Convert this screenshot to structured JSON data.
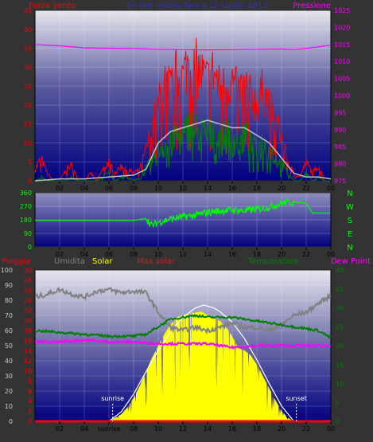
{
  "chart_data": [
    {
      "id": "wind",
      "type": "line",
      "title": "24 Ore meteo fino a 12 Luglio 2013",
      "left_label": "Forza vento",
      "right_label": "Pressione",
      "ylim": [
        0,
        45
      ],
      "y_ticks": [
        0,
        5,
        10,
        15,
        20,
        25,
        30,
        35,
        40,
        45
      ],
      "y2lim": [
        975,
        1025
      ],
      "y2_ticks": [
        975,
        980,
        985,
        990,
        995,
        1000,
        1005,
        1010,
        1015,
        1020,
        1025
      ],
      "x_ticks": [
        "02",
        "04",
        "06",
        "08",
        "10",
        "12",
        "14",
        "16",
        "18",
        "20",
        "22",
        "00"
      ],
      "x_range_hours": [
        0,
        24
      ],
      "colors": {
        "gust": "#ff0000",
        "speed": "#008000",
        "average": "#c0c0c0",
        "pressure": "#ff00ff"
      },
      "gust": {
        "hours": [
          0.0,
          0.5,
          1.0,
          1.5,
          2.0,
          2.5,
          3.0,
          3.5,
          4.0,
          4.5,
          5.0,
          5.5,
          6.0,
          6.5,
          7.0,
          7.5,
          8.0,
          8.5,
          9.0,
          9.5,
          10.0,
          10.5,
          11.0,
          11.5,
          12.0,
          12.5,
          13.0,
          13.5,
          14.0,
          14.5,
          15.0,
          15.5,
          16.0,
          16.5,
          17.0,
          17.5,
          18.0,
          18.5,
          19.0,
          19.5,
          20.0,
          20.5,
          21.0,
          21.5,
          22.0,
          22.5,
          23.0,
          23.5,
          24.0
        ],
        "values": [
          3,
          6,
          2,
          0,
          0,
          3,
          4,
          0,
          0,
          2,
          0,
          3,
          5,
          2,
          4,
          3,
          2,
          3,
          8,
          14,
          20,
          26,
          24,
          28,
          27,
          32,
          30,
          28,
          26,
          29,
          24,
          25,
          26,
          23,
          25,
          22,
          20,
          24,
          20,
          16,
          12,
          5,
          2,
          1,
          5,
          2,
          4,
          0,
          0
        ]
      },
      "speed": {
        "hours": [
          0.0,
          0.5,
          1.0,
          1.5,
          2.0,
          2.5,
          3.0,
          3.5,
          4.0,
          4.5,
          5.0,
          5.5,
          6.0,
          6.5,
          7.0,
          7.5,
          8.0,
          8.5,
          9.0,
          9.5,
          10.0,
          10.5,
          11.0,
          11.5,
          12.0,
          12.5,
          13.0,
          13.5,
          14.0,
          14.5,
          15.0,
          15.5,
          16.0,
          16.5,
          17.0,
          17.5,
          18.0,
          18.5,
          19.0,
          19.5,
          20.0,
          20.5,
          21.0,
          21.5,
          22.0,
          22.5,
          23.0,
          23.5,
          24.0
        ],
        "values": [
          0,
          1,
          0,
          0,
          0,
          0,
          1,
          0,
          0,
          0,
          0,
          1,
          2,
          0,
          1,
          1,
          0,
          1,
          3,
          5,
          8,
          10,
          9,
          12,
          11,
          14,
          13,
          12,
          12,
          13,
          10,
          12,
          11,
          10,
          12,
          9,
          8,
          10,
          8,
          6,
          4,
          2,
          0,
          0,
          2,
          0,
          1,
          0,
          0
        ]
      },
      "average": {
        "hours": [
          0,
          2,
          4,
          6,
          8,
          9,
          10,
          11,
          12,
          13,
          14,
          15,
          16,
          17,
          18,
          19,
          20,
          21,
          22,
          23,
          24
        ],
        "values": [
          0,
          0.5,
          0.5,
          1,
          1.5,
          3,
          10,
          13,
          14,
          15,
          16,
          15,
          14,
          14,
          12,
          10,
          6,
          2,
          1,
          1,
          0.5
        ]
      },
      "pressure": {
        "hours": [
          0,
          2,
          4,
          6,
          8,
          10,
          12,
          14,
          16,
          18,
          20,
          21,
          22,
          24
        ],
        "values": [
          1015.0,
          1014.6,
          1014.0,
          1013.9,
          1013.8,
          1013.6,
          1013.5,
          1013.4,
          1013.5,
          1013.6,
          1013.7,
          1013.5,
          1013.8,
          1014.8
        ]
      }
    },
    {
      "id": "direction",
      "type": "line",
      "ylim": [
        0,
        360
      ],
      "y_ticks": [
        0,
        90,
        180,
        270,
        360
      ],
      "x_ticks": [
        "02",
        "04",
        "06",
        "08",
        "10",
        "12",
        "14",
        "16",
        "18",
        "20",
        "22",
        "00"
      ],
      "x_range_hours": [
        0,
        24
      ],
      "compass_labels": [
        "N",
        "W",
        "S",
        "E",
        "N"
      ],
      "color": "#00ff00",
      "hours": [
        0,
        8,
        9,
        9.5,
        10,
        11,
        12,
        13,
        14,
        15,
        16,
        17,
        18,
        19,
        20,
        21,
        22,
        22.5,
        24
      ],
      "values": [
        175,
        175,
        190,
        140,
        165,
        185,
        200,
        210,
        230,
        240,
        245,
        240,
        250,
        265,
        290,
        300,
        290,
        225,
        225
      ]
    },
    {
      "id": "solar",
      "type": "area",
      "left_labels": [
        "Pioggia",
        "Umidita",
        "Solar",
        "Max solar"
      ],
      "right_labels": [
        "Temperatura",
        "Dew Point"
      ],
      "humidity_axis": {
        "ylim": [
          0,
          100
        ],
        "ticks": [
          0,
          10,
          20,
          30,
          40,
          50,
          60,
          70,
          80,
          90,
          100
        ]
      },
      "rain_axis": {
        "ylim": [
          0,
          30
        ],
        "ticks": [
          0,
          2,
          4,
          6,
          8,
          10,
          12,
          14,
          16,
          18,
          20,
          22,
          24,
          26,
          28,
          30
        ]
      },
      "temp_axis": {
        "ylim": [
          0,
          40
        ],
        "ticks": [
          0,
          5,
          10,
          15,
          20,
          25,
          30,
          35,
          40
        ]
      },
      "x_ticks": [
        "02",
        "04",
        "sunrise",
        "08",
        "10",
        "12",
        "14",
        "16",
        "18",
        "20",
        "22",
        "00"
      ],
      "x_range_hours": [
        0,
        24
      ],
      "annotations": [
        "sunrise",
        "sunset"
      ],
      "sunrise_hour": 6.3,
      "sunset_hour": 21.2,
      "solar_max_value": 1000,
      "colors": {
        "rain": "#ff0000",
        "humidity": "#808080",
        "solar": "#ffff00",
        "max_solar": "#ffffff",
        "temperature": "#008000",
        "dew_point": "#ff00ff"
      },
      "humidity": {
        "hours": [
          0,
          1,
          2,
          3,
          4,
          5,
          6,
          7,
          8,
          9,
          10,
          11,
          12,
          13,
          14,
          15,
          16,
          17,
          18,
          19,
          20,
          21,
          22,
          23,
          24
        ],
        "values": [
          82,
          84,
          87,
          84,
          82,
          86,
          87,
          85,
          86,
          85,
          72,
          62,
          60,
          62,
          60,
          62,
          65,
          62,
          62,
          60,
          64,
          70,
          72,
          78,
          83
        ]
      },
      "temperature": {
        "hours": [
          0,
          2,
          4,
          6,
          8,
          9,
          10,
          11,
          12,
          13,
          14,
          15,
          16,
          17,
          18,
          19,
          20,
          21,
          22,
          23,
          24
        ],
        "values": [
          24,
          23.5,
          23,
          22.5,
          22.5,
          23,
          25,
          27,
          27.5,
          28,
          27.5,
          27.5,
          27.5,
          27,
          26.5,
          26,
          25.5,
          25,
          24.5,
          24,
          22
        ]
      },
      "dew_point": {
        "hours": [
          0,
          2,
          4,
          6,
          8,
          10,
          12,
          14,
          16,
          18,
          20,
          22,
          24
        ],
        "values": [
          21,
          21,
          21.5,
          21,
          21,
          20.5,
          20.5,
          20.5,
          19.5,
          20,
          20,
          20,
          20
        ]
      },
      "solar": {
        "hours": [
          6,
          7,
          7.5,
          8,
          8.5,
          9,
          9.5,
          10,
          10.5,
          11,
          11.5,
          12,
          12.5,
          13,
          13.5,
          14,
          14.5,
          15,
          15.5,
          16,
          16.5,
          17,
          17.5,
          18,
          18.5,
          19,
          19.5,
          20,
          20.5,
          21
        ],
        "values": [
          0,
          60,
          120,
          200,
          300,
          420,
          540,
          640,
          740,
          820,
          880,
          900,
          920,
          920,
          930,
          900,
          880,
          850,
          800,
          720,
          620,
          600,
          560,
          480,
          380,
          280,
          180,
          90,
          30,
          0
        ]
      },
      "max_solar": {
        "hours": [
          6,
          7,
          8,
          9,
          10,
          11,
          12,
          13,
          13.7,
          14.5,
          15,
          16,
          17,
          18,
          19,
          20,
          21
        ],
        "values": [
          0,
          80,
          230,
          420,
          600,
          760,
          880,
          960,
          985,
          960,
          930,
          840,
          700,
          520,
          320,
          130,
          0
        ]
      },
      "rain": {
        "hours": [
          0,
          24
        ],
        "values": [
          0,
          0
        ]
      }
    }
  ]
}
